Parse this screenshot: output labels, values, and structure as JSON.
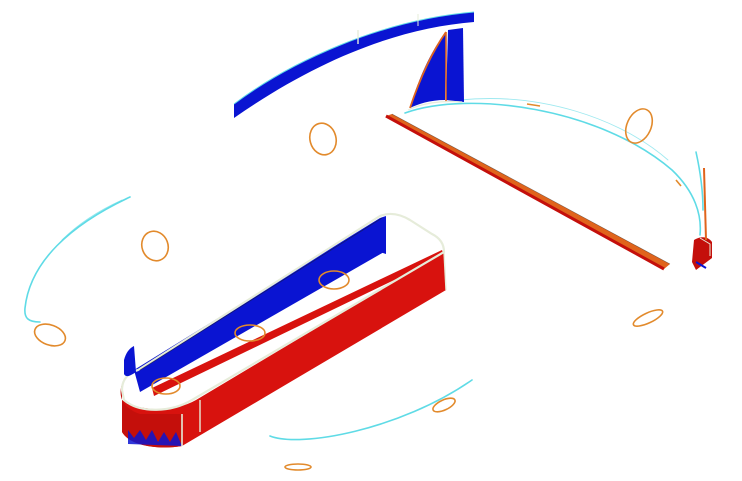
{
  "viewport": {
    "background": "#ffffff"
  },
  "colors": {
    "face_red": "#d8120e",
    "face_red_dark": "#c40f0b",
    "face_blue": "#0a14d2",
    "face_blue_dark": "#0010b8",
    "face_orange": "#e0641c",
    "outline_orange": "#e28a2c",
    "curve_cyan": "#5fdbe6",
    "edge_light": "#e6ecda",
    "edge_dark": "#1a1a1a"
  },
  "scene_objects": [
    "slot-body",
    "blue-arc-strip",
    "blue-triangle-panel",
    "diagonal-red-bar",
    "small-red-block",
    "orange-circle-outlines",
    "cyan-guide-curves"
  ]
}
